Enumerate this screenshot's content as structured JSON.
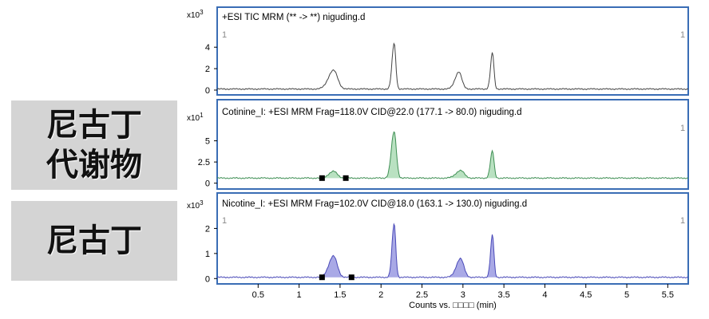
{
  "side_labels": [
    {
      "text_line1": "尼古丁",
      "text_line2": "代谢物"
    },
    {
      "text_line1": "尼古丁"
    }
  ],
  "chart_data": {
    "type": "line",
    "xlabel": "Counts vs. □□□□ (min)",
    "x_ticks": [
      "0.5",
      "1",
      "1.5",
      "2",
      "2.5",
      "3",
      "3.5",
      "4",
      "4.5",
      "5",
      "5.5"
    ],
    "x_tick_values": [
      0.5,
      1,
      1.5,
      2,
      2.5,
      3,
      3.5,
      4,
      4.5,
      5,
      5.5
    ],
    "xlim": [
      0,
      5.75
    ],
    "panels": [
      {
        "title": "+ESI TIC MRM (** -> **) niguding.d",
        "scale_label": "x10",
        "scale_exp": "3",
        "corner_left": "1",
        "corner_right": "1",
        "y_ticks": [
          "4",
          "2",
          "0"
        ],
        "y_tick_values": [
          4,
          2,
          0
        ],
        "ylim": [
          -0.3,
          5.8
        ],
        "fill": false,
        "color": "#444444",
        "baseline": 0.1,
        "peaks": [
          {
            "rt": 1.42,
            "height": 1.75,
            "width": 0.055
          },
          {
            "rt": 2.16,
            "height": 4.3,
            "width": 0.022
          },
          {
            "rt": 2.95,
            "height": 1.6,
            "width": 0.04
          },
          {
            "rt": 3.36,
            "height": 3.4,
            "width": 0.02
          }
        ],
        "markers": []
      },
      {
        "title": "Cotinine_I: +ESI MRM Frag=118.0V CID@22.0 (177.1 -> 80.0) niguding.d",
        "scale_label": "x10",
        "scale_exp": "1",
        "corner_left": "",
        "corner_right": "1",
        "y_ticks": [
          "5",
          "2.5",
          "0"
        ],
        "y_tick_values": [
          5,
          2.5,
          0
        ],
        "ylim": [
          -0.5,
          7.5
        ],
        "fill": true,
        "color": "#3f8f54",
        "fill_color": "#b9e1c1",
        "baseline": 0.6,
        "peaks": [
          {
            "rt": 1.42,
            "height": 0.8,
            "width": 0.05
          },
          {
            "rt": 2.16,
            "height": 5.5,
            "width": 0.03
          },
          {
            "rt": 2.97,
            "height": 0.9,
            "width": 0.05
          },
          {
            "rt": 3.36,
            "height": 3.2,
            "width": 0.022
          }
        ],
        "markers": [
          {
            "x": 1.28,
            "y": 0.6
          },
          {
            "x": 1.57,
            "y": 0.6
          }
        ]
      },
      {
        "title": "Nicotine_I: +ESI MRM Frag=102.0V CID@18.0 (163.1 -> 130.0) niguding.d",
        "scale_label": "x10",
        "scale_exp": "3",
        "corner_left": "1",
        "corner_right": "1",
        "y_ticks": [
          "2",
          "1",
          "0"
        ],
        "y_tick_values": [
          2,
          1,
          0
        ],
        "ylim": [
          -0.15,
          2.65
        ],
        "fill": true,
        "color": "#4a4ab8",
        "fill_color": "#a9a9e6",
        "baseline": 0.05,
        "peaks": [
          {
            "rt": 1.42,
            "height": 0.85,
            "width": 0.05
          },
          {
            "rt": 2.16,
            "height": 2.15,
            "width": 0.022
          },
          {
            "rt": 2.97,
            "height": 0.75,
            "width": 0.045
          },
          {
            "rt": 3.36,
            "height": 1.7,
            "width": 0.02
          }
        ],
        "markers": [
          {
            "x": 1.28,
            "y": 0.05
          },
          {
            "x": 1.64,
            "y": 0.05
          }
        ]
      }
    ]
  }
}
